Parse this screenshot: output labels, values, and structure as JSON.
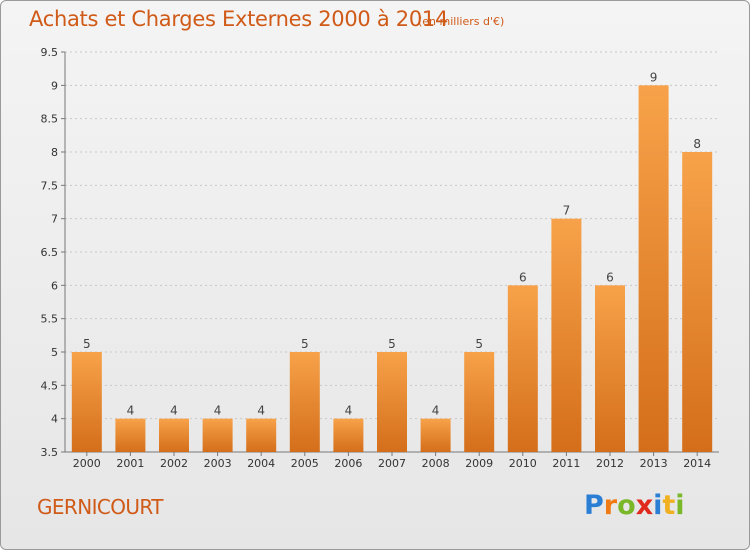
{
  "title": "Achats et Charges Externes 2000 à 2014",
  "subtitle": "(en milliers d'€)",
  "commune": "GERNICOURT",
  "logo": {
    "letters": [
      "P",
      "r",
      "o",
      "x",
      "i",
      "t",
      "i"
    ],
    "colors": [
      "#2a7fd4",
      "#f07a14",
      "#7ab82a",
      "#e02a1e",
      "#2a7fd4",
      "#f0b020",
      "#7ab82a"
    ]
  },
  "colors": {
    "bar_top": "#f7a24a",
    "bar_bottom": "#d46e1a",
    "accent": "#d05a18"
  },
  "chart_data": {
    "type": "bar",
    "categories": [
      "2000",
      "2001",
      "2002",
      "2003",
      "2004",
      "2005",
      "2006",
      "2007",
      "2008",
      "2009",
      "2010",
      "2011",
      "2012",
      "2013",
      "2014"
    ],
    "values": [
      5,
      4,
      4,
      4,
      4,
      5,
      4,
      5,
      4,
      5,
      6,
      7,
      6,
      9,
      8
    ],
    "ylim": [
      3.5,
      9.5
    ],
    "yticks": [
      "3.5",
      "4",
      "4.5",
      "5",
      "5.5",
      "6",
      "6.5",
      "7",
      "7.5",
      "8",
      "8.5",
      "9",
      "9.5"
    ],
    "grid": true
  }
}
